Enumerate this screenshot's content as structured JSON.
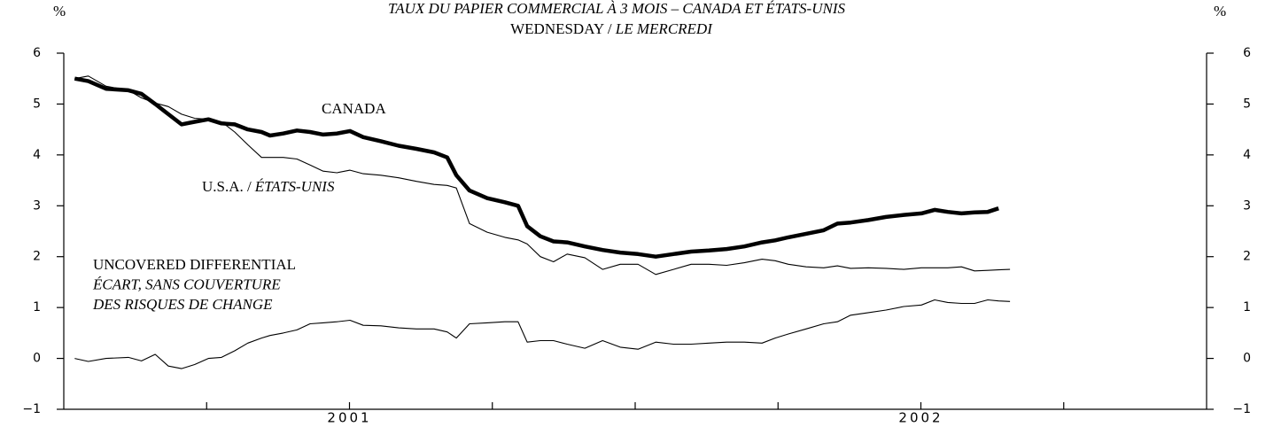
{
  "chart_data": {
    "type": "line",
    "title": "TAUX DU PAPIER COMMERCIAL À 3 MOIS – CANADA ET ÉTATS-UNIS",
    "subtitle": [
      "WEDNESDAY /",
      "LE MERCREDI"
    ],
    "y_unit": "%",
    "xlim": [
      2000.5,
      2002.5
    ],
    "xticks": [
      2001,
      2002
    ],
    "x_minor_ticks": [
      2000.75,
      2001.25,
      2001.5,
      2001.75,
      2002.25
    ],
    "ylim": [
      -1,
      6
    ],
    "yticks": [
      {
        "value": -1,
        "label": "−1"
      },
      0,
      1,
      2,
      3,
      4,
      5,
      6
    ],
    "x": [
      2000.519,
      2000.543,
      2000.574,
      2000.613,
      2000.636,
      2000.66,
      2000.683,
      2000.706,
      2000.729,
      2000.753,
      2000.776,
      2000.799,
      2000.822,
      2000.846,
      2000.861,
      2000.884,
      2000.908,
      2000.931,
      2000.954,
      2000.978,
      2001.001,
      2001.024,
      2001.055,
      2001.086,
      2001.117,
      2001.148,
      2001.171,
      2001.187,
      2001.21,
      2001.241,
      2001.272,
      2001.295,
      2001.311,
      2001.334,
      2001.357,
      2001.381,
      2001.412,
      2001.443,
      2001.474,
      2001.505,
      2001.536,
      2001.567,
      2001.598,
      2001.629,
      2001.66,
      2001.691,
      2001.722,
      2001.745,
      2001.768,
      2001.799,
      2001.83,
      2001.854,
      2001.877,
      2001.908,
      2001.939,
      2001.97,
      2002.001,
      2002.024,
      2002.047,
      2002.071,
      2002.094,
      2002.117,
      2002.136,
      2002.156
    ],
    "series": [
      {
        "name": [
          "CANADA"
        ],
        "color": "#000000",
        "values": [
          5.5,
          5.45,
          5.3,
          5.27,
          5.2,
          5.0,
          4.8,
          4.6,
          4.65,
          4.7,
          4.62,
          4.6,
          4.5,
          4.45,
          4.38,
          4.42,
          4.48,
          4.45,
          4.4,
          4.42,
          4.47,
          4.35,
          4.27,
          4.18,
          4.12,
          4.05,
          3.95,
          3.6,
          3.3,
          3.15,
          3.07,
          3.0,
          2.6,
          2.4,
          2.3,
          2.28,
          2.2,
          2.13,
          2.08,
          2.05,
          2.0,
          2.05,
          2.1,
          2.12,
          2.15,
          2.2,
          2.28,
          2.32,
          2.38,
          2.45,
          2.52,
          2.65,
          2.67,
          2.72,
          2.78,
          2.82,
          2.85,
          2.92,
          2.88,
          2.85,
          2.87,
          2.88,
          2.95,
          null
        ]
      },
      {
        "name": [
          "U.S.A. /",
          "ÉTATS-UNIS"
        ],
        "color": "#000000",
        "values": [
          5.5,
          5.55,
          5.35,
          5.27,
          5.12,
          5.02,
          4.95,
          4.8,
          4.72,
          4.7,
          4.65,
          4.45,
          4.2,
          3.95,
          3.95,
          3.95,
          3.92,
          3.8,
          3.68,
          3.65,
          3.7,
          3.63,
          3.6,
          3.55,
          3.48,
          3.42,
          3.4,
          3.35,
          2.65,
          2.48,
          2.38,
          2.33,
          2.25,
          2.0,
          1.9,
          2.05,
          1.98,
          1.75,
          1.85,
          1.85,
          1.65,
          1.75,
          1.85,
          1.85,
          1.83,
          1.88,
          1.95,
          1.92,
          1.85,
          1.8,
          1.78,
          1.82,
          1.77,
          1.78,
          1.77,
          1.75,
          1.78,
          1.78,
          1.78,
          1.8,
          1.72,
          1.73,
          1.74,
          1.75
        ]
      },
      {
        "name": [
          "UNCOVERED DIFFERENTIAL",
          "ÉCART, SANS COUVERTURE",
          "DES RISQUES DE CHANGE"
        ],
        "color": "#000000",
        "values": [
          0,
          -0.06,
          0,
          0.02,
          -0.05,
          0.08,
          -0.15,
          -0.2,
          -0.12,
          0,
          0.02,
          0.15,
          0.3,
          0.4,
          0.45,
          0.5,
          0.56,
          0.68,
          0.7,
          0.72,
          0.75,
          0.65,
          0.64,
          0.6,
          0.58,
          0.58,
          0.52,
          0.4,
          0.68,
          0.7,
          0.72,
          0.72,
          0.32,
          0.35,
          0.35,
          0.28,
          0.2,
          0.35,
          0.22,
          0.18,
          0.32,
          0.28,
          0.28,
          0.3,
          0.32,
          0.32,
          0.3,
          0.4,
          0.48,
          0.58,
          0.68,
          0.72,
          0.85,
          0.9,
          0.95,
          1.02,
          1.05,
          1.15,
          1.1,
          1.08,
          1.08,
          1.15,
          1.13,
          1.12
        ]
      }
    ]
  }
}
